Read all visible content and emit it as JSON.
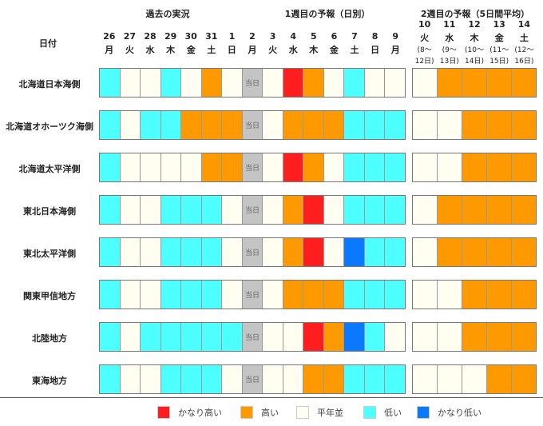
{
  "header": {
    "past": "過去の実況",
    "week1": "1週目の予報（日別）",
    "week2": "2週目の予報（5日間平均）",
    "date_label": "日付"
  },
  "days": [
    {
      "d": "26",
      "w": "月"
    },
    {
      "d": "27",
      "w": "火"
    },
    {
      "d": "28",
      "w": "水"
    },
    {
      "d": "29",
      "w": "木"
    },
    {
      "d": "30",
      "w": "金"
    },
    {
      "d": "31",
      "w": "土"
    },
    {
      "d": "1",
      "w": "日"
    },
    {
      "d": "2",
      "w": "月"
    },
    {
      "d": "3",
      "w": "火"
    },
    {
      "d": "4",
      "w": "水"
    },
    {
      "d": "5",
      "w": "木"
    },
    {
      "d": "6",
      "w": "金"
    },
    {
      "d": "7",
      "w": "土"
    },
    {
      "d": "8",
      "w": "日"
    },
    {
      "d": "9",
      "w": "月"
    }
  ],
  "week2_days": [
    {
      "d": "10",
      "w": "火",
      "r1": "(8～",
      "r2": "12日)"
    },
    {
      "d": "11",
      "w": "水",
      "r1": "(9～",
      "r2": "13日)"
    },
    {
      "d": "12",
      "w": "木",
      "r1": "(10～",
      "r2": "14日)"
    },
    {
      "d": "13",
      "w": "金",
      "r1": "(11～",
      "r2": "15日)"
    },
    {
      "d": "14",
      "w": "土",
      "r1": "(12～",
      "r2": "16日)"
    }
  ],
  "today_label": "当日",
  "colors": {
    "R": "#ff1e1e",
    "O": "#ff9900",
    "W": "#fffef0",
    "C": "#4dffff",
    "B": "#0a78ff",
    "T": "#c4c4c4"
  },
  "regions": [
    {
      "name": "北海道日本海側",
      "w1": [
        "C",
        "W",
        "W",
        "C",
        "W",
        "O",
        "W",
        "T",
        "W",
        "R",
        "O",
        "W",
        "C",
        "W",
        "W"
      ],
      "w2": [
        "W",
        "O",
        "O",
        "O",
        "O"
      ]
    },
    {
      "name": "北海道オホーツク海側",
      "w1": [
        "C",
        "W",
        "C",
        "C",
        "O",
        "O",
        "O",
        "T",
        "W",
        "O",
        "O",
        "O",
        "C",
        "C",
        "C"
      ],
      "w2": [
        "W",
        "W",
        "O",
        "O",
        "O"
      ]
    },
    {
      "name": "北海道太平洋側",
      "w1": [
        "C",
        "W",
        "W",
        "W",
        "W",
        "O",
        "O",
        "T",
        "W",
        "R",
        "O",
        "W",
        "C",
        "C",
        "C"
      ],
      "w2": [
        "W",
        "W",
        "O",
        "O",
        "O"
      ]
    },
    {
      "name": "東北日本海側",
      "w1": [
        "C",
        "W",
        "W",
        "C",
        "C",
        "C",
        "W",
        "T",
        "W",
        "O",
        "R",
        "W",
        "C",
        "C",
        "C"
      ],
      "w2": [
        "W",
        "O",
        "O",
        "O",
        "O"
      ]
    },
    {
      "name": "東北太平洋側",
      "w1": [
        "C",
        "W",
        "W",
        "C",
        "C",
        "C",
        "W",
        "T",
        "W",
        "O",
        "R",
        "W",
        "B",
        "C",
        "C"
      ],
      "w2": [
        "W",
        "O",
        "O",
        "O",
        "O"
      ]
    },
    {
      "name": "関東甲信地方",
      "w1": [
        "C",
        "W",
        "W",
        "C",
        "C",
        "C",
        "W",
        "T",
        "W",
        "O",
        "O",
        "O",
        "C",
        "C",
        "C"
      ],
      "w2": [
        "W",
        "W",
        "O",
        "O",
        "O"
      ]
    },
    {
      "name": "北陸地方",
      "w1": [
        "C",
        "W",
        "C",
        "C",
        "C",
        "C",
        "C",
        "T",
        "W",
        "W",
        "R",
        "O",
        "B",
        "C",
        "W"
      ],
      "w2": [
        "W",
        "W",
        "O",
        "O",
        "O"
      ]
    },
    {
      "name": "東海地方",
      "w1": [
        "C",
        "W",
        "W",
        "C",
        "C",
        "C",
        "W",
        "T",
        "W",
        "W",
        "O",
        "O",
        "C",
        "C",
        "C"
      ],
      "w2": [
        "W",
        "W",
        "W",
        "O",
        "O"
      ]
    }
  ],
  "legend": [
    {
      "code": "R",
      "label": "かなり高い"
    },
    {
      "code": "O",
      "label": "高い"
    },
    {
      "code": "W",
      "label": "平年並"
    },
    {
      "code": "C",
      "label": "低い"
    },
    {
      "code": "B",
      "label": "かなり低い"
    }
  ]
}
